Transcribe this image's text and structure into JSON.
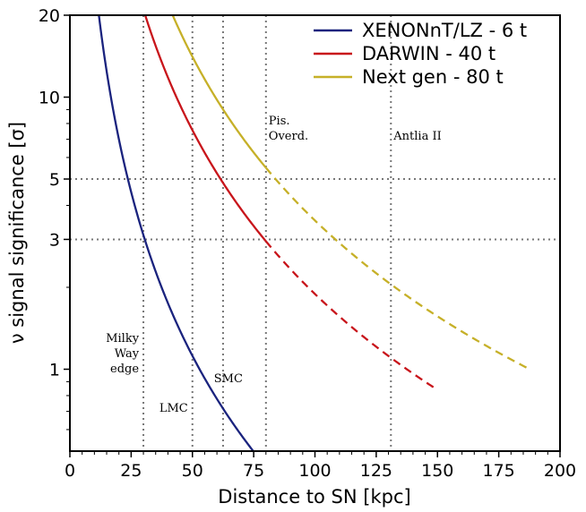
{
  "chart_data": {
    "type": "line",
    "xlabel": "Distance to SN [kpc]",
    "ylabel": "ν signal significance [σ]",
    "xlim": [
      0,
      200
    ],
    "ylim": [
      0.5,
      20
    ],
    "yscale": "log",
    "x_ticks": [
      0,
      25,
      50,
      75,
      100,
      125,
      150,
      175,
      200
    ],
    "y_ticks": [
      1,
      3,
      5,
      10,
      20
    ],
    "reference_lines": {
      "horizontal_sigma": [
        3,
        5
      ],
      "vertical_kpc": [
        30,
        50,
        62.5,
        80,
        131
      ]
    },
    "annotations": [
      {
        "id": "milky-way-edge",
        "lines": [
          "Milky",
          "Way",
          "edge"
        ],
        "x": 30
      },
      {
        "id": "lmc",
        "lines": [
          "LMC"
        ],
        "x": 50
      },
      {
        "id": "smc",
        "lines": [
          "SMC"
        ],
        "x": 62.5
      },
      {
        "id": "pisces-overdensity",
        "lines": [
          "Pis.",
          "Overd."
        ],
        "x": 80
      },
      {
        "id": "antlia-ii",
        "lines": [
          "Antlia II"
        ],
        "x": 131
      }
    ],
    "legend": {
      "position": "top-right",
      "entries": [
        "XENONnT/LZ - 6 t",
        "DARWIN - 40 t",
        "Next gen - 80 t"
      ]
    },
    "series": [
      {
        "name": "XENONnT/LZ - 6 t",
        "color": "#1a237e",
        "style": "solid",
        "k": 2800,
        "x_start": 10,
        "x_end": 78,
        "dashed_from": null
      },
      {
        "name": "DARWIN - 40 t",
        "color": "#c8151b",
        "style": "solid",
        "k": 18900,
        "x_start": 22,
        "x_end": 150,
        "dashed_from": 80
      },
      {
        "name": "Next gen - 80 t",
        "color": "#c6b028",
        "style": "solid",
        "k": 35200,
        "x_start": 26,
        "x_end": 188,
        "dashed_from": 80
      }
    ]
  }
}
